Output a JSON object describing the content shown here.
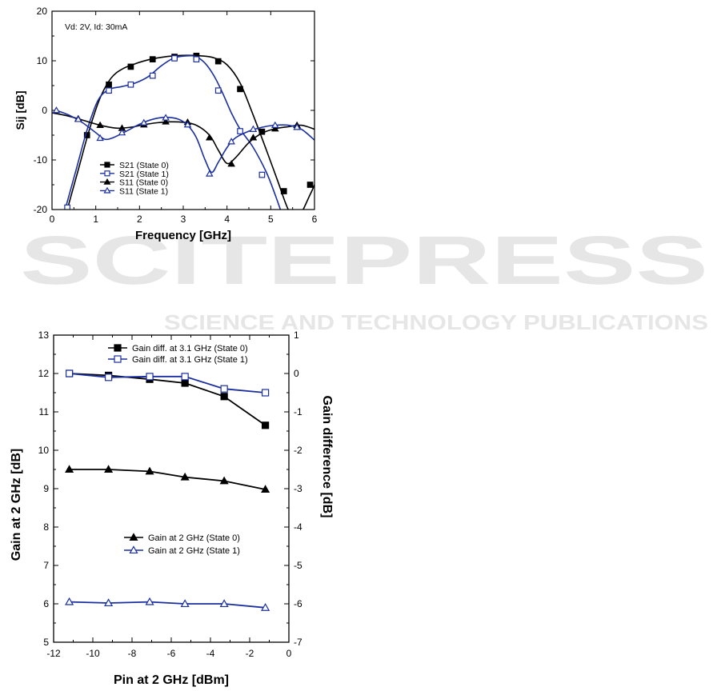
{
  "watermark": {
    "main": "SCITEPRESS",
    "sub": "SCIENCE AND TECHNOLOGY PUBLICATIONS"
  },
  "chart_data": [
    {
      "type": "line",
      "annotation": "Vd: 2V, Id: 30mA",
      "xlabel": "Frequency [GHz]",
      "ylabel": "Sij [dB]",
      "xlim": [
        0,
        6
      ],
      "ylim": [
        -20,
        20
      ],
      "xticks": [
        0,
        1,
        2,
        3,
        4,
        5,
        6
      ],
      "yticks": [
        -20,
        -10,
        0,
        10,
        20
      ],
      "legend_position": "lower-left",
      "series": [
        {
          "name": "S21 (State 0)",
          "color": "#000000",
          "marker": "filled-square",
          "x": [
            0.35,
            0.6,
            0.85,
            1.1,
            1.35,
            1.6,
            1.9,
            2.2,
            2.5,
            2.8,
            3.1,
            3.4,
            3.7,
            4.0,
            4.3,
            4.6,
            4.9,
            5.15,
            5.4,
            5.6,
            5.9,
            6.0
          ],
          "y": [
            -20,
            -12,
            -4,
            2.5,
            6.5,
            8.3,
            9.4,
            10.2,
            10.7,
            11.0,
            11.1,
            11.0,
            10.6,
            9.2,
            5.5,
            -1,
            -8,
            -14,
            -20,
            -22,
            -17,
            -15
          ],
          "markers_x": [
            0.8,
            1.3,
            1.8,
            2.3,
            2.8,
            3.3,
            3.8,
            4.3,
            4.8,
            5.3,
            5.9
          ],
          "markers_y": [
            -5,
            5.2,
            8.8,
            10.3,
            10.8,
            11.0,
            9.9,
            4.3,
            -4.3,
            -16.3,
            -15
          ]
        },
        {
          "name": "S21 (State 1)",
          "color": "#1a2fa0",
          "marker": "open-square",
          "x": [
            0.3,
            0.55,
            0.8,
            1.05,
            1.3,
            1.6,
            1.9,
            2.2,
            2.5,
            2.8,
            3.1,
            3.3,
            3.5,
            3.7,
            3.9,
            4.1,
            4.3,
            4.6,
            4.9,
            5.1,
            5.3
          ],
          "y": [
            -20,
            -12,
            -4,
            2,
            4.2,
            4.8,
            5.5,
            6.8,
            9.0,
            10.6,
            11.0,
            10.8,
            9.5,
            7.0,
            3.5,
            -0.5,
            -3.8,
            -7.5,
            -12.5,
            -17,
            -22
          ],
          "markers_x": [
            0.35,
            1.3,
            1.8,
            2.3,
            2.8,
            3.3,
            3.8,
            4.3,
            4.8
          ],
          "markers_y": [
            -19.6,
            4.0,
            5.2,
            7.0,
            10.5,
            10.3,
            4.0,
            -4.2,
            -13.0
          ]
        },
        {
          "name": "S11 (State 0)",
          "color": "#000000",
          "marker": "filled-triangle",
          "x": [
            0.0,
            0.3,
            0.6,
            0.9,
            1.2,
            1.5,
            1.8,
            2.1,
            2.4,
            2.7,
            3.0,
            3.3,
            3.6,
            3.8,
            4.0,
            4.2,
            4.5,
            4.8,
            5.1,
            5.4,
            5.7,
            6.0
          ],
          "y": [
            -0.5,
            -1.0,
            -1.7,
            -2.5,
            -3.2,
            -3.6,
            -3.4,
            -2.9,
            -2.5,
            -2.3,
            -2.4,
            -3.0,
            -5.0,
            -8.0,
            -10.7,
            -9.5,
            -6.5,
            -4.6,
            -3.7,
            -3.3,
            -3.0,
            -3.8
          ],
          "markers_x": [
            0.6,
            1.1,
            1.6,
            2.1,
            2.6,
            3.1,
            3.6,
            4.1,
            4.6,
            5.1,
            5.6
          ],
          "markers_y": [
            -1.7,
            -3.0,
            -3.6,
            -2.9,
            -2.3,
            -2.4,
            -5.5,
            -10.8,
            -5.5,
            -3.7,
            -3.0
          ]
        },
        {
          "name": "S11 (State 1)",
          "color": "#1a2fa0",
          "marker": "open-triangle",
          "x": [
            0.1,
            0.4,
            0.7,
            1.0,
            1.2,
            1.4,
            1.7,
            2.0,
            2.3,
            2.6,
            2.9,
            3.1,
            3.3,
            3.5,
            3.65,
            3.8,
            4.0,
            4.2,
            4.5,
            4.8,
            5.1,
            5.4,
            5.7,
            6.0
          ],
          "y": [
            0,
            -1.0,
            -2.5,
            -4.5,
            -5.8,
            -5.5,
            -4.2,
            -2.8,
            -1.8,
            -1.4,
            -1.8,
            -3.0,
            -5.5,
            -10.0,
            -12.5,
            -10.5,
            -7.5,
            -5.5,
            -4.2,
            -3.4,
            -3.0,
            -3.0,
            -3.8,
            -6.0
          ],
          "markers_x": [
            0.1,
            0.6,
            1.1,
            1.6,
            2.1,
            2.6,
            3.1,
            3.6,
            4.1,
            4.6,
            5.1,
            5.6
          ],
          "markers_y": [
            0.0,
            -1.8,
            -5.6,
            -4.5,
            -2.5,
            -1.5,
            -2.9,
            -12.8,
            -6.3,
            -3.8,
            -3.0,
            -3.4
          ]
        }
      ]
    },
    {
      "type": "line",
      "xlabel": "Pin at 2 GHz [dBm]",
      "ylabel": "Gain at 2 GHz [dB]",
      "y2label": "Gain difference [dB]",
      "xlim": [
        -12,
        0
      ],
      "ylim": [
        5,
        13
      ],
      "y2lim": [
        -7,
        1
      ],
      "xticks": [
        -12,
        -10,
        -8,
        -6,
        -4,
        -2,
        0
      ],
      "yticks": [
        5,
        6,
        7,
        8,
        9,
        10,
        11,
        12,
        13
      ],
      "y2ticks": [
        -7,
        -6,
        -5,
        -4,
        -3,
        -2,
        -1,
        0,
        1
      ],
      "legend_positions": [
        "top-right",
        "lower-middle"
      ],
      "series": [
        {
          "name": "Gain diff. at 3.1 GHz (State 0)",
          "axis": "right",
          "color": "#000000",
          "marker": "filled-square",
          "x": [
            -11.2,
            -9.2,
            -7.1,
            -5.3,
            -3.3,
            -1.2
          ],
          "y": [
            0.0,
            -0.05,
            -0.15,
            -0.25,
            -0.6,
            -1.35
          ]
        },
        {
          "name": "Gain diff. at 3.1 GHz (State 1)",
          "axis": "right",
          "color": "#1a2fa0",
          "marker": "open-square",
          "x": [
            -11.2,
            -9.2,
            -7.1,
            -5.3,
            -3.3,
            -1.2
          ],
          "y": [
            0.0,
            -0.1,
            -0.08,
            -0.08,
            -0.4,
            -0.5
          ]
        },
        {
          "name": "Gain at 2 GHz (State 0)",
          "axis": "left",
          "color": "#000000",
          "marker": "filled-triangle",
          "x": [
            -11.2,
            -9.2,
            -7.1,
            -5.3,
            -3.3,
            -1.2
          ],
          "y": [
            9.5,
            9.5,
            9.45,
            9.3,
            9.2,
            8.98
          ]
        },
        {
          "name": "Gain at 2 GHz (State 1)",
          "axis": "left",
          "color": "#1a2fa0",
          "marker": "open-triangle",
          "x": [
            -11.2,
            -9.2,
            -7.1,
            -5.3,
            -3.3,
            -1.2
          ],
          "y": [
            6.05,
            6.02,
            6.05,
            6.0,
            6.0,
            5.9
          ]
        }
      ]
    }
  ]
}
